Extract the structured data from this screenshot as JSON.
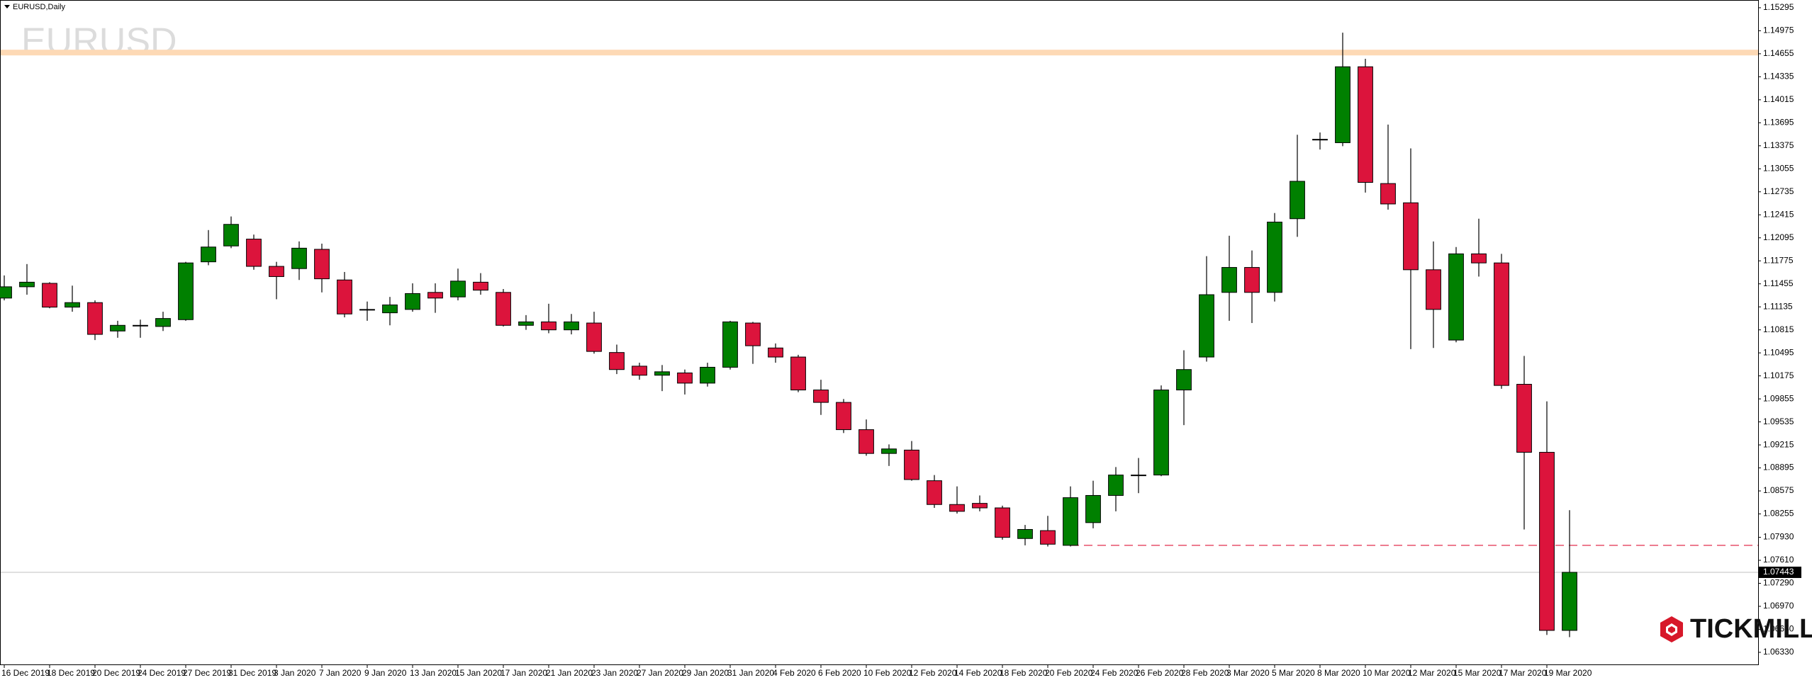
{
  "chart_data": {
    "type": "candlestick",
    "title": "EURUSD,Daily",
    "watermark": "EURUSD",
    "logo": "TICKMILL",
    "categories": [
      "16 Dec 2019",
      null,
      "18 Dec 2019",
      null,
      "20 Dec 2019",
      null,
      "24 Dec 2019",
      null,
      "27 Dec 2019",
      null,
      "31 Dec 2019",
      null,
      "3 Jan 2020",
      null,
      "7 Jan 2020",
      null,
      "9 Jan 2020",
      null,
      "13 Jan 2020",
      null,
      "15 Jan 2020",
      null,
      "17 Jan 2020",
      null,
      "21 Jan 2020",
      null,
      "23 Jan 2020",
      null,
      "27 Jan 2020",
      null,
      "29 Jan 2020",
      null,
      "31 Jan 2020",
      null,
      "4 Feb 2020",
      null,
      "6 Feb 2020",
      null,
      "10 Feb 2020",
      null,
      "12 Feb 2020",
      null,
      "14 Feb 2020",
      null,
      "18 Feb 2020",
      null,
      "20 Feb 2020",
      null,
      "24 Feb 2020",
      null,
      "26 Feb 2020",
      null,
      "28 Feb 2020",
      null,
      "3 Mar 2020",
      null,
      "5 Mar 2020",
      null,
      "8 Mar 2020",
      null,
      "10 Mar 2020",
      null,
      "12 Mar 2020",
      null,
      "15 Mar 2020",
      null,
      "17 Mar 2020",
      null,
      "19 Mar 2020",
      null
    ],
    "open": [
      1.11257,
      1.11414,
      1.11462,
      1.11131,
      1.11194,
      1.10799,
      1.10878,
      1.10862,
      1.10957,
      1.11761,
      1.11982,
      1.12077,
      1.11698,
      1.11667,
      1.11935,
      1.11509,
      1.11099,
      1.11052,
      1.11099,
      1.11336,
      1.11273,
      1.11478,
      1.11336,
      1.10878,
      1.10926,
      1.10815,
      1.1091,
      1.105,
      1.1031,
      1.10184,
      1.10216,
      1.10074,
      1.10295,
      1.1091,
      1.10563,
      1.10437,
      1.09979,
      1.09806,
      1.09427,
      1.09096,
      1.09143,
      1.08717,
      1.08386,
      1.08402,
      1.08339,
      1.07913,
      1.08023,
      1.07818,
      1.08134,
      1.08512,
      1.08796,
      1.08796,
      1.09979,
      1.10437,
      1.11336,
      1.11683,
      1.11336,
      1.12361,
      1.13465,
      1.13418,
      1.14474,
      1.1285,
      1.12582,
      1.11651,
      1.10673,
      1.11872,
      1.11746,
      1.10058,
      1.09112,
      1.06635
    ],
    "high": [
      1.11572,
      1.1173,
      1.11478,
      1.1143,
      1.11225,
      1.10941,
      1.10957,
      1.11067,
      1.11761,
      1.12203,
      1.12392,
      1.1214,
      1.11761,
      1.12045,
      1.12014,
      1.1162,
      1.11209,
      1.11273,
      1.11462,
      1.11462,
      1.11667,
      1.11604,
      1.11383,
      1.1102,
      1.11178,
      1.11036,
      1.11067,
      1.1061,
      1.10358,
      1.10326,
      1.10263,
      1.10358,
      1.10941,
      1.10926,
      1.10626,
      1.10468,
      1.10121,
      1.09853,
      1.09569,
      1.09222,
      1.09269,
      1.08796,
      1.08638,
      1.08512,
      1.0837,
      1.08102,
      1.08228,
      1.08638,
      1.08717,
      1.08907,
      1.09033,
      1.10042,
      1.10531,
      1.1184,
      1.12124,
      1.11919,
      1.1244,
      1.13528,
      1.1356,
      1.14948,
      1.14585,
      1.1367,
      1.13339,
      1.12045,
      1.11967,
      1.12361,
      1.11872,
      1.10452,
      1.09821,
      1.08307
    ],
    "low": [
      1.11225,
      1.11304,
      1.11115,
      1.11067,
      1.10673,
      1.10705,
      1.10705,
      1.10799,
      1.10941,
      1.11714,
      1.11951,
      1.11651,
      1.11241,
      1.11509,
      1.11336,
      1.10989,
      1.10941,
      1.10878,
      1.11067,
      1.11052,
      1.11225,
      1.11304,
      1.10862,
      1.10815,
      1.10768,
      1.10752,
      1.10484,
      1.102,
      1.10121,
      1.09963,
      1.09916,
      1.10026,
      1.10263,
      1.10342,
      1.10358,
      1.09948,
      1.09632,
      1.0938,
      1.09064,
      1.08922,
      1.08717,
      1.08339,
      1.0826,
      1.08291,
      1.07897,
      1.07818,
      1.07802,
      1.07802,
      1.08055,
      1.08291,
      1.08544,
      1.0878,
      1.0949,
      1.10373,
      1.10941,
      1.1091,
      1.11209,
      1.12108,
      1.13323,
      1.1337,
      1.12724,
      1.12487,
      1.10547,
      1.10563,
      1.10642,
      1.11556,
      1.09995,
      1.08039,
      1.06572,
      1.06541
    ],
    "close": [
      1.11414,
      1.11478,
      1.11131,
      1.11194,
      1.10752,
      1.10878,
      1.1087,
      1.10973,
      1.11746,
      1.11967,
      1.12282,
      1.11698,
      1.11556,
      1.11951,
      1.11525,
      1.11036,
      1.1109,
      1.11162,
      1.1132,
      1.11257,
      1.11493,
      1.11367,
      1.10878,
      1.10926,
      1.10815,
      1.10926,
      1.10515,
      1.10263,
      1.10184,
      1.10232,
      1.10074,
      1.10295,
      1.10926,
      1.10594,
      1.10437,
      1.09979,
      1.09806,
      1.09427,
      1.09096,
      1.09159,
      1.08733,
      1.08386,
      1.08291,
      1.08339,
      1.07929,
      1.08039,
      1.07834,
      1.08481,
      1.08512,
      1.08796,
      1.0879,
      1.09979,
      1.10263,
      1.11304,
      1.11683,
      1.11336,
      1.12314,
      1.12881,
      1.1346,
      1.14474,
      1.12866,
      1.12566,
      1.11651,
      1.11099,
      1.11872,
      1.11746,
      1.10042,
      1.09112,
      1.06635,
      1.07443
    ],
    "up_color": "#008000",
    "down_color": "#dc143c",
    "current_price": 1.07443,
    "resistance_zone": [
      1.14632,
      1.14711
    ],
    "zone_color": "#fdd9b5",
    "support_level": 1.07818,
    "level_color": "#e8506a",
    "ylim": [
      1.06162,
      1.15373
    ],
    "yticks": [
      {
        "value": 1.0633,
        "label": "1.06330"
      },
      {
        "value": 1.0665,
        "label": "1.06650"
      },
      {
        "value": 1.0697,
        "label": "1.06970"
      },
      {
        "value": 1.0729,
        "label": "1.07290"
      },
      {
        "value": 1.0761,
        "label": "1.07610"
      },
      {
        "value": 1.0793,
        "label": "1.07930"
      },
      1.08255,
      1.08575,
      1.08895,
      1.09215,
      1.09535,
      1.09855,
      1.10175,
      1.10495,
      1.10815,
      1.11135,
      1.11455,
      1.11775,
      1.12095,
      1.12415,
      1.12735,
      1.13055,
      1.13375,
      1.13695,
      1.14015,
      1.14335,
      1.14655,
      1.14975,
      1.15295
    ]
  }
}
